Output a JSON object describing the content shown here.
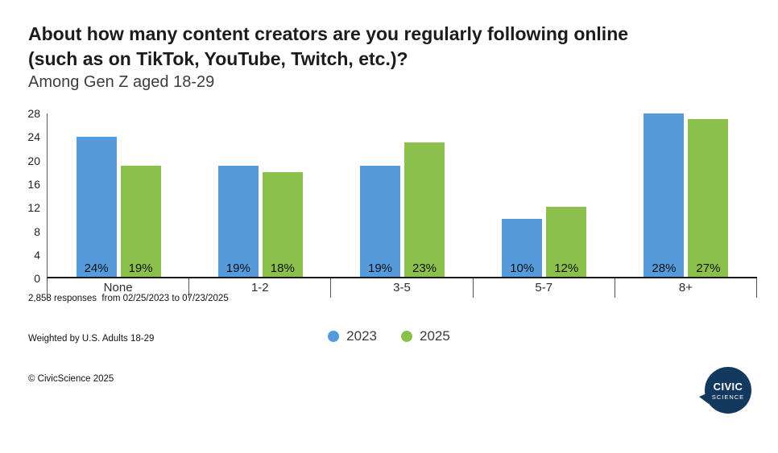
{
  "header": {
    "title_line1": "About how many content creators are you regularly following online",
    "title_line2": "(such as on TikTok, YouTube, Twitch, etc.)?",
    "subtitle": "Among Gen Z aged 18-29"
  },
  "chart_data": {
    "type": "bar",
    "categories": [
      "None",
      "1-2",
      "3-5",
      "5-7",
      "8+"
    ],
    "series": [
      {
        "name": "2023",
        "color": "#559BDB",
        "values": [
          24,
          19,
          19,
          10,
          28
        ]
      },
      {
        "name": "2025",
        "color": "#8BC04C",
        "values": [
          19,
          18,
          23,
          12,
          27
        ]
      }
    ],
    "value_suffix": "%",
    "title": "About how many content creators are you regularly following online (such as on TikTok, YouTube, Twitch, etc.)?",
    "subtitle": "Among Gen Z aged 18-29",
    "xlabel": "",
    "ylabel": "",
    "ylim": [
      0,
      28
    ],
    "yticks": [
      0,
      4,
      8,
      12,
      16,
      20,
      24,
      28
    ],
    "grid": false,
    "legend_position": "bottom"
  },
  "footer": {
    "line1": "2,858 responses  from 02/25/2023 to 07/23/2025",
    "line2": "Weighted by U.S. Adults 18-29",
    "line3": "© CivicScience 2025"
  },
  "logo": {
    "line1": "CIVIC",
    "line2": "SCIENCE"
  }
}
